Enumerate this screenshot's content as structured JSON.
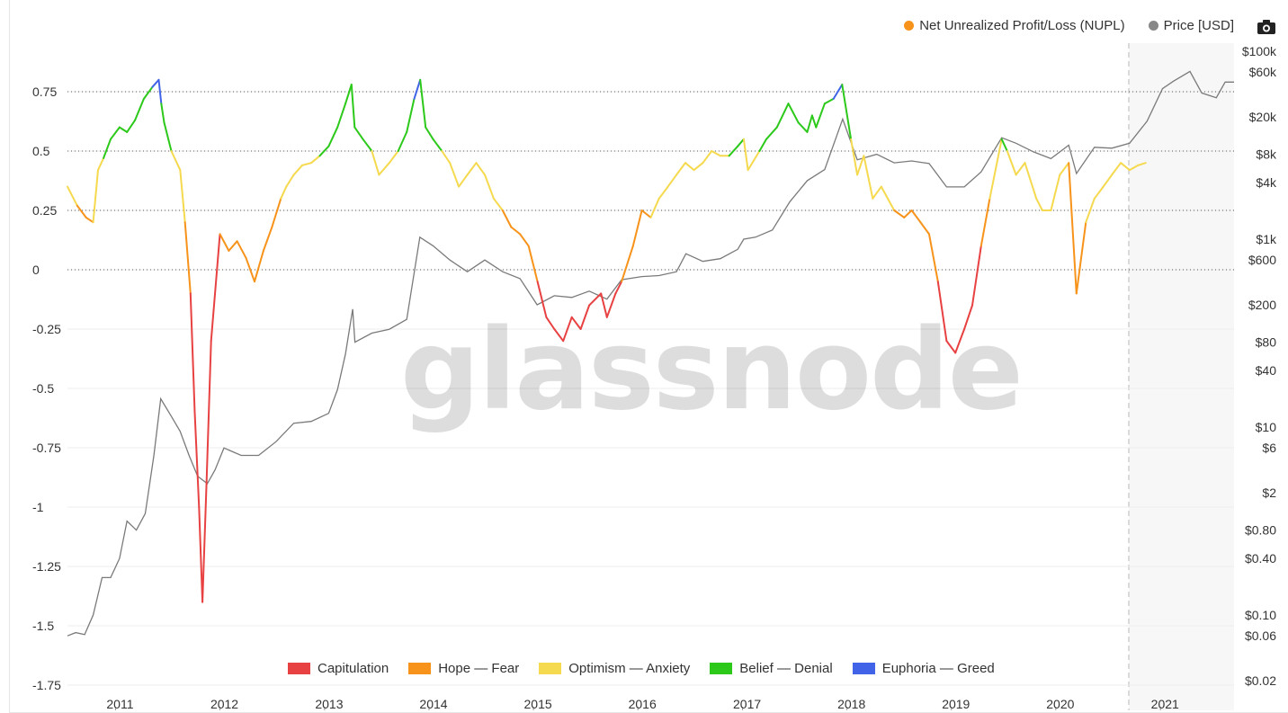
{
  "legend_top": [
    {
      "label": "Net Unrealized Profit/Loss (NUPL)",
      "color": "#f7931a"
    },
    {
      "label": "Price [USD]",
      "color": "#888888"
    }
  ],
  "camera_icon": "camera-icon",
  "watermark": "glassnode",
  "legend_bottom": [
    {
      "label": "Capitulation",
      "color": "#e84142"
    },
    {
      "label": "Hope — Fear",
      "color": "#f7931a"
    },
    {
      "label": "Optimism — Anxiety",
      "color": "#f5d94e"
    },
    {
      "label": "Belief — Denial",
      "color": "#2cc91b"
    },
    {
      "label": "Euphoria — Greed",
      "color": "#4163e8"
    }
  ],
  "chart_data": {
    "type": "line",
    "left_axis": {
      "ticks": [
        0.75,
        0.5,
        0.25,
        0,
        -0.25,
        -0.5,
        -0.75,
        -1,
        -1.25,
        -1.5,
        -1.75
      ],
      "tick_labels": [
        "0.75",
        "0.5",
        "0.25",
        "0",
        "-0.25",
        "-0.5",
        "-0.75",
        "-1",
        "-1.25",
        "-1.5",
        "-1.75"
      ],
      "range": [
        -1.75,
        1.0
      ]
    },
    "right_axis": {
      "scale": "log",
      "ticks": [
        100000,
        60000,
        20000,
        8000,
        4000,
        1000,
        600,
        200,
        80,
        40,
        10,
        6,
        2,
        0.8,
        0.4,
        0.1,
        0.06,
        0.02
      ],
      "tick_labels": [
        "$100k",
        "$60k",
        "$20k",
        "$8k",
        "$4k",
        "$1k",
        "$600",
        "$200",
        "$80",
        "$40",
        "$10",
        "$6",
        "$2",
        "$0.80",
        "$0.40",
        "$0.10",
        "$0.06",
        "$0.02"
      ]
    },
    "x_axis": {
      "ticks": [
        "2011-01-01",
        "2012-01-01",
        "2013-01-01",
        "2014-01-01",
        "2015-01-01",
        "2016-01-01",
        "2017-01-01",
        "2018-01-01",
        "2019-01-01",
        "2020-01-01",
        "2021-01-01"
      ],
      "tick_labels": [
        "2011",
        "2012",
        "2013",
        "2014",
        "2015",
        "2016",
        "2017",
        "2018",
        "2019",
        "2020",
        "2021"
      ],
      "range": [
        "2010-07-17",
        "2021-09-15"
      ]
    },
    "reference_lines": [
      0.75,
      0.5,
      0.25,
      0
    ],
    "forecast_start": "2020-10-01",
    "zone_thresholds": {
      "capitulation": 0,
      "hope_fear": 0.25,
      "optimism_anxiety": 0.5,
      "belief_denial": 0.75
    },
    "series": [
      {
        "name": "Net Unrealized Profit/Loss (NUPL)",
        "axis": "left",
        "x": [
          "2010-07-17",
          "2010-08-20",
          "2010-09-20",
          "2010-10-15",
          "2010-11-01",
          "2010-11-20",
          "2010-12-15",
          "2011-01-15",
          "2011-02-10",
          "2011-03-10",
          "2011-04-10",
          "2011-05-10",
          "2011-06-01",
          "2011-06-10",
          "2011-06-20",
          "2011-07-15",
          "2011-08-15",
          "2011-09-01",
          "2011-09-20",
          "2011-10-05",
          "2011-10-20",
          "2011-11-01",
          "2011-11-15",
          "2011-12-01",
          "2012-01-01",
          "2012-02-01",
          "2012-03-01",
          "2012-04-01",
          "2012-05-01",
          "2012-06-01",
          "2012-07-01",
          "2012-08-01",
          "2012-08-20",
          "2012-09-15",
          "2012-10-15",
          "2012-11-15",
          "2012-12-15",
          "2013-01-15",
          "2013-02-15",
          "2013-03-15",
          "2013-04-05",
          "2013-04-16",
          "2013-05-15",
          "2013-06-15",
          "2013-07-10",
          "2013-08-15",
          "2013-09-15",
          "2013-10-15",
          "2013-11-10",
          "2013-12-01",
          "2013-12-20",
          "2014-01-15",
          "2014-02-15",
          "2014-03-15",
          "2014-04-15",
          "2014-05-15",
          "2014-06-15",
          "2014-07-15",
          "2014-08-15",
          "2014-09-15",
          "2014-10-15",
          "2014-11-15",
          "2014-12-15",
          "2015-01-15",
          "2015-02-15",
          "2015-03-15",
          "2015-04-15",
          "2015-05-15",
          "2015-06-15",
          "2015-07-15",
          "2015-08-25",
          "2015-09-15",
          "2015-10-15",
          "2015-11-05",
          "2015-12-15",
          "2016-01-15",
          "2016-02-15",
          "2016-03-15",
          "2016-04-15",
          "2016-05-15",
          "2016-06-15",
          "2016-07-15",
          "2016-08-15",
          "2016-09-15",
          "2016-10-15",
          "2016-11-15",
          "2016-12-15",
          "2017-01-05",
          "2017-01-20",
          "2017-03-01",
          "2017-03-25",
          "2017-05-01",
          "2017-06-10",
          "2017-07-15",
          "2017-08-15",
          "2017-09-01",
          "2017-09-15",
          "2017-10-15",
          "2017-11-15",
          "2017-12-15",
          "2018-01-15",
          "2018-02-06",
          "2018-03-01",
          "2018-04-01",
          "2018-05-01",
          "2018-06-15",
          "2018-07-20",
          "2018-08-15",
          "2018-09-15",
          "2018-10-15",
          "2018-11-15",
          "2018-12-15",
          "2019-01-15",
          "2019-02-15",
          "2019-03-15",
          "2019-04-15",
          "2019-05-15",
          "2019-06-26",
          "2019-07-15",
          "2019-08-15",
          "2019-09-15",
          "2019-10-25",
          "2019-11-15",
          "2019-12-15",
          "2020-01-15",
          "2020-02-15",
          "2020-03-13",
          "2020-04-15",
          "2020-05-15",
          "2020-06-15",
          "2020-07-15",
          "2020-08-15",
          "2020-09-15",
          "2020-10-15",
          "2020-11-10"
        ],
        "values": [
          0.35,
          0.27,
          0.22,
          0.2,
          0.42,
          0.47,
          0.55,
          0.6,
          0.58,
          0.63,
          0.72,
          0.77,
          0.8,
          0.7,
          0.62,
          0.5,
          0.42,
          0.2,
          -0.1,
          -0.6,
          -1.0,
          -1.4,
          -0.9,
          -0.3,
          0.15,
          0.08,
          0.12,
          0.05,
          -0.05,
          0.08,
          0.18,
          0.3,
          0.35,
          0.4,
          0.44,
          0.45,
          0.48,
          0.52,
          0.6,
          0.7,
          0.78,
          0.6,
          0.55,
          0.5,
          0.4,
          0.45,
          0.5,
          0.58,
          0.72,
          0.8,
          0.6,
          0.55,
          0.5,
          0.45,
          0.35,
          0.4,
          0.45,
          0.4,
          0.3,
          0.25,
          0.18,
          0.15,
          0.1,
          -0.05,
          -0.2,
          -0.25,
          -0.3,
          -0.2,
          -0.25,
          -0.15,
          -0.1,
          -0.2,
          -0.1,
          -0.05,
          0.1,
          0.25,
          0.22,
          0.3,
          0.35,
          0.4,
          0.45,
          0.42,
          0.45,
          0.5,
          0.48,
          0.48,
          0.52,
          0.55,
          0.42,
          0.5,
          0.55,
          0.6,
          0.7,
          0.62,
          0.58,
          0.65,
          0.6,
          0.7,
          0.72,
          0.78,
          0.55,
          0.4,
          0.48,
          0.3,
          0.35,
          0.25,
          0.22,
          0.25,
          0.2,
          0.15,
          -0.05,
          -0.3,
          -0.35,
          -0.25,
          -0.15,
          0.1,
          0.3,
          0.55,
          0.5,
          0.4,
          0.45,
          0.3,
          0.25,
          0.25,
          0.4,
          0.45,
          -0.1,
          0.2,
          0.3,
          0.35,
          0.4,
          0.45,
          0.42,
          0.44,
          0.45
        ]
      },
      {
        "name": "Price [USD]",
        "axis": "right",
        "x": [
          "2010-07-17",
          "2010-08-15",
          "2010-09-15",
          "2010-10-15",
          "2010-11-15",
          "2010-12-15",
          "2011-01-15",
          "2011-02-10",
          "2011-03-15",
          "2011-04-15",
          "2011-05-15",
          "2011-06-08",
          "2011-07-15",
          "2011-08-15",
          "2011-09-15",
          "2011-10-15",
          "2011-11-18",
          "2011-12-15",
          "2012-01-15",
          "2012-03-15",
          "2012-05-15",
          "2012-07-15",
          "2012-09-15",
          "2012-11-15",
          "2013-01-15",
          "2013-02-15",
          "2013-03-15",
          "2013-04-09",
          "2013-04-17",
          "2013-06-15",
          "2013-08-15",
          "2013-10-15",
          "2013-11-30",
          "2014-01-15",
          "2014-03-15",
          "2014-05-15",
          "2014-07-15",
          "2014-09-15",
          "2014-11-15",
          "2015-01-14",
          "2015-03-15",
          "2015-05-15",
          "2015-07-15",
          "2015-09-15",
          "2015-11-05",
          "2016-01-15",
          "2016-03-15",
          "2016-05-15",
          "2016-06-17",
          "2016-08-15",
          "2016-10-15",
          "2016-12-15",
          "2017-01-05",
          "2017-02-15",
          "2017-04-15",
          "2017-06-15",
          "2017-08-15",
          "2017-10-15",
          "2017-12-17",
          "2018-02-06",
          "2018-04-15",
          "2018-06-15",
          "2018-08-15",
          "2018-10-15",
          "2018-12-15",
          "2019-02-15",
          "2019-04-15",
          "2019-06-26",
          "2019-08-15",
          "2019-10-15",
          "2019-12-15",
          "2020-02-15",
          "2020-03-13",
          "2020-05-15",
          "2020-07-15",
          "2020-09-15",
          "2020-11-15",
          "2021-01-08",
          "2021-02-15",
          "2021-04-14",
          "2021-05-25",
          "2021-07-15",
          "2021-08-15",
          "2021-09-15"
        ],
        "values": [
          0.06,
          0.065,
          0.062,
          0.1,
          0.25,
          0.25,
          0.4,
          1.0,
          0.8,
          1.2,
          5.0,
          20.0,
          13.0,
          9.0,
          5.0,
          3.0,
          2.5,
          3.5,
          6.0,
          5.0,
          5.0,
          7.0,
          11.0,
          11.5,
          14.0,
          25.0,
          60.0,
          180.0,
          80.0,
          100.0,
          110.0,
          140.0,
          1050.0,
          850.0,
          600.0,
          450.0,
          600.0,
          450.0,
          380.0,
          200.0,
          250.0,
          240.0,
          280.0,
          230.0,
          370.0,
          400.0,
          410.0,
          450.0,
          700.0,
          580.0,
          620.0,
          780.0,
          1000.0,
          1050.0,
          1250.0,
          2500.0,
          4200.0,
          5500.0,
          19000.0,
          7000.0,
          8000.0,
          6500.0,
          6800.0,
          6400.0,
          3600.0,
          3600.0,
          5200.0,
          12000.0,
          10500.0,
          8500.0,
          7200.0,
          10000.0,
          5000.0,
          9500.0,
          9300.0,
          10500.0,
          18000.0,
          40000.0,
          48000.0,
          61000.0,
          36000.0,
          32000.0,
          47000.0,
          47000.0
        ]
      }
    ]
  }
}
